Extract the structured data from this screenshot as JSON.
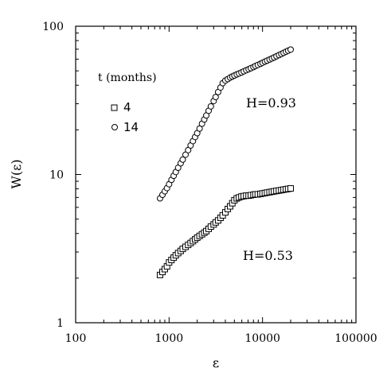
{
  "chart_data": {
    "type": "scatter",
    "title": "",
    "xlabel": "ε",
    "ylabel": "W(ε)",
    "xscale": "log",
    "yscale": "log",
    "xlim": [
      100,
      100000
    ],
    "ylim": [
      1,
      100
    ],
    "x_ticks": [
      "100",
      "1000",
      "10000",
      "100000"
    ],
    "y_ticks": [
      "1",
      "10",
      "100"
    ],
    "grid": false,
    "legend": {
      "title": "t (months)",
      "placement": "upper-left",
      "entries": [
        {
          "label": "4",
          "marker": "square"
        },
        {
          "label": "14",
          "marker": "circle"
        }
      ]
    },
    "series": [
      {
        "name": "14",
        "marker": "circle",
        "x": [
          800,
          850,
          900,
          950,
          1000,
          1060,
          1120,
          1180,
          1250,
          1330,
          1400,
          1500,
          1600,
          1700,
          1800,
          1900,
          2000,
          2120,
          2250,
          2380,
          2500,
          2650,
          2800,
          3000,
          3150,
          3350,
          3550,
          3750,
          4000,
          4250,
          4500,
          4750,
          5000,
          5300,
          5600,
          5950,
          6300,
          6700,
          7100,
          7500,
          8000,
          8400,
          8900,
          9500,
          10000,
          10600,
          11200,
          11900,
          12600,
          13300,
          14100,
          15000,
          15900,
          16800,
          17800,
          18800,
          20000
        ],
        "y": [
          6.9,
          7.3,
          7.7,
          8.1,
          8.6,
          9.2,
          9.8,
          10.4,
          11.1,
          11.9,
          12.6,
          13.6,
          14.6,
          15.7,
          16.8,
          17.9,
          19.0,
          20.4,
          22.0,
          23.5,
          25.0,
          26.9,
          28.8,
          31.3,
          33.3,
          36.0,
          38.6,
          41.3,
          43.0,
          44.0,
          45.0,
          45.8,
          46.5,
          47.3,
          48.0,
          48.8,
          49.6,
          50.5,
          51.3,
          52.1,
          53.0,
          53.9,
          54.8,
          55.8,
          56.7,
          57.7,
          58.6,
          59.6,
          60.6,
          61.6,
          62.7,
          63.9,
          65.0,
          66.1,
          67.3,
          68.4,
          69.6
        ]
      },
      {
        "name": "4",
        "marker": "square",
        "x": [
          800,
          850,
          900,
          950,
          1000,
          1060,
          1120,
          1180,
          1250,
          1330,
          1400,
          1500,
          1600,
          1700,
          1800,
          1900,
          2000,
          2120,
          2250,
          2380,
          2500,
          2650,
          2800,
          3000,
          3150,
          3350,
          3550,
          3750,
          4000,
          4250,
          4500,
          4750,
          5000,
          5300,
          5600,
          5950,
          6300,
          6700,
          7100,
          7500,
          8000,
          8400,
          8900,
          9500,
          10000,
          10600,
          11200,
          11900,
          12600,
          13300,
          14100,
          15000,
          15900,
          16800,
          17800,
          18800,
          20000
        ],
        "y": [
          2.1,
          2.2,
          2.3,
          2.4,
          2.55,
          2.65,
          2.75,
          2.85,
          2.95,
          3.05,
          3.15,
          3.25,
          3.35,
          3.45,
          3.55,
          3.65,
          3.75,
          3.85,
          3.95,
          4.05,
          4.15,
          4.3,
          4.45,
          4.6,
          4.75,
          4.9,
          5.1,
          5.3,
          5.55,
          5.85,
          6.1,
          6.4,
          6.7,
          6.9,
          7.0,
          7.1,
          7.15,
          7.2,
          7.2,
          7.25,
          7.3,
          7.35,
          7.35,
          7.4,
          7.45,
          7.5,
          7.55,
          7.6,
          7.65,
          7.7,
          7.75,
          7.8,
          7.85,
          7.9,
          7.95,
          8.0,
          8.05
        ]
      }
    ],
    "annotations": [
      {
        "text": "H=0.93",
        "x": 5200,
        "y": 24
      },
      {
        "text": "H=0.53",
        "x": 5200,
        "y": 3.4
      }
    ]
  }
}
